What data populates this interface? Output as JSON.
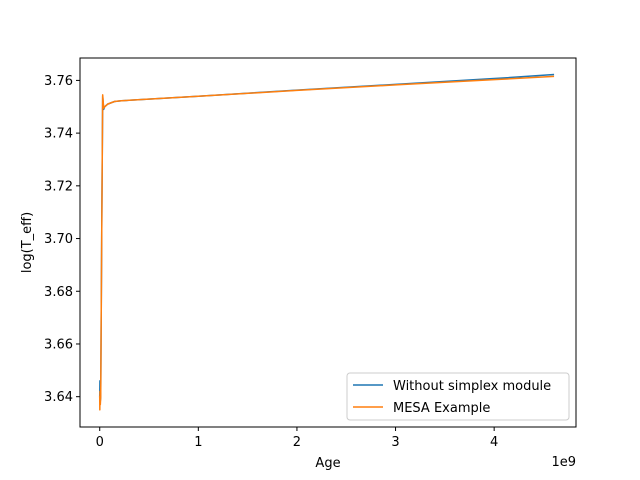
{
  "chart_data": {
    "type": "line",
    "title": "",
    "xlabel": "Age",
    "ylabel": "log(T_eff)",
    "x_offset_label": "1e9",
    "xlim": [
      -200000000,
      4830000000
    ],
    "ylim": [
      3.6285,
      3.7685
    ],
    "xticks": [
      {
        "value": 0,
        "label": "0"
      },
      {
        "value": 1000000000,
        "label": "1"
      },
      {
        "value": 2000000000,
        "label": "2"
      },
      {
        "value": 3000000000,
        "label": "3"
      },
      {
        "value": 4000000000,
        "label": "4"
      }
    ],
    "yticks": [
      {
        "value": 3.64,
        "label": "3.64"
      },
      {
        "value": 3.66,
        "label": "3.66"
      },
      {
        "value": 3.68,
        "label": "3.68"
      },
      {
        "value": 3.7,
        "label": "3.70"
      },
      {
        "value": 3.72,
        "label": "3.72"
      },
      {
        "value": 3.74,
        "label": "3.74"
      },
      {
        "value": 3.76,
        "label": "3.76"
      }
    ],
    "grid": false,
    "legend_position": "lower-right",
    "series": [
      {
        "name": "Without simplex module",
        "color": "#1f77b4",
        "x": [
          0,
          2000000,
          5000000,
          10000000,
          20000000,
          30000000,
          40000000,
          50000000,
          80000000,
          150000000,
          220000000,
          1000000000,
          2000000000,
          3000000000,
          4000000000,
          4600000000
        ],
        "y": [
          3.64,
          3.646,
          3.638,
          3.64,
          3.7,
          3.754,
          3.749,
          3.75,
          3.751,
          3.752,
          3.7523,
          3.754,
          3.7563,
          3.7585,
          3.7607,
          3.7622
        ]
      },
      {
        "name": "MESA Example",
        "color": "#ff7f0e",
        "x": [
          0,
          1000000,
          3000000,
          6000000,
          10000000,
          20000000,
          30000000,
          40000000,
          50000000,
          80000000,
          150000000,
          220000000,
          1000000000,
          2000000000,
          3000000000,
          4000000000,
          4600000000
        ],
        "y": [
          3.64,
          3.635,
          3.642,
          3.637,
          3.64,
          3.7,
          3.7545,
          3.7495,
          3.75,
          3.751,
          3.752,
          3.7523,
          3.754,
          3.7562,
          3.7583,
          3.7603,
          3.7615
        ]
      }
    ]
  }
}
